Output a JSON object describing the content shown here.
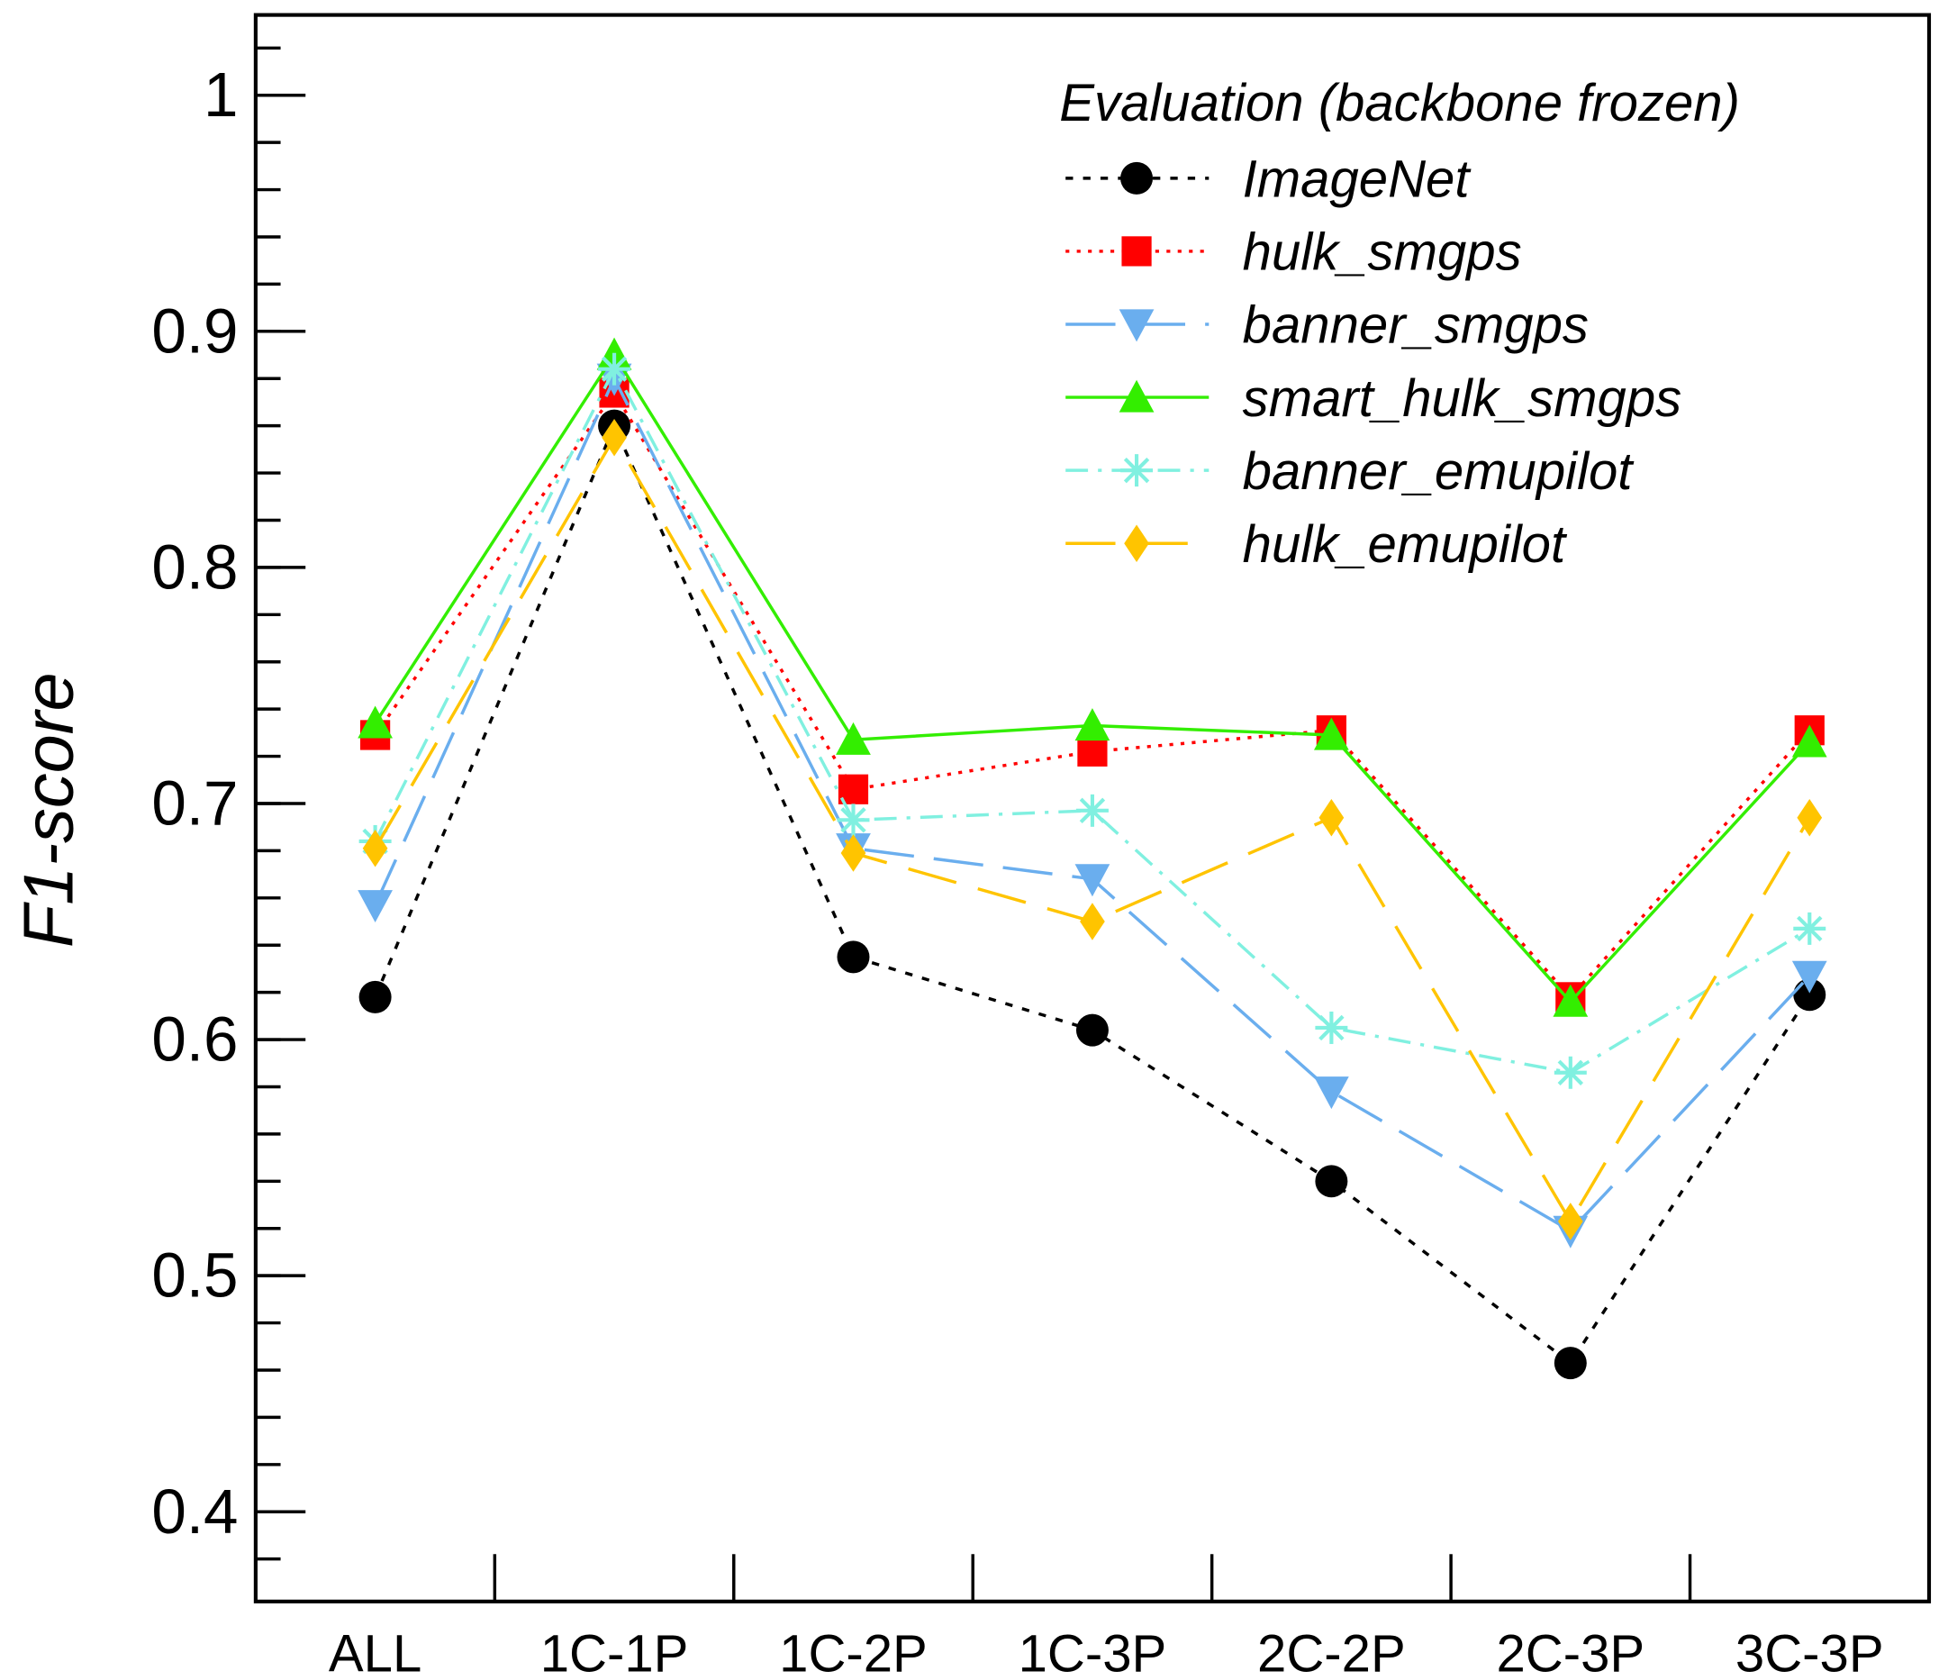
{
  "chart_data": {
    "type": "line",
    "title": "",
    "xlabel": "",
    "ylabel": "F1-score",
    "ylim": [
      0.362,
      1.034
    ],
    "yticks": [
      0.4,
      0.5,
      0.6,
      0.7,
      0.8,
      0.9,
      1.0
    ],
    "ytick_labels": [
      "0.4",
      "0.5",
      "0.6",
      "0.7",
      "0.8",
      "0.9",
      "1"
    ],
    "categories": [
      "ALL",
      "1C-1P",
      "1C-2P",
      "1C-3P",
      "2C-2P",
      "2C-3P",
      "3C-3P"
    ],
    "legend_title": "Evaluation (backbone frozen)",
    "legend_position": "top-right",
    "grid": false,
    "series": [
      {
        "name": "ImageNet",
        "color": "#000000",
        "marker": "circle",
        "dash": "6,8",
        "values": [
          0.618,
          0.86,
          0.635,
          0.604,
          0.54,
          0.463,
          0.619
        ]
      },
      {
        "name": "hulk_smgps",
        "color": "#ff0000",
        "marker": "square",
        "dash": "3,6",
        "values": [
          0.729,
          0.874,
          0.706,
          0.722,
          0.731,
          0.618,
          0.731
        ]
      },
      {
        "name": "banner_smgps",
        "color": "#6aaeee",
        "marker": "triangle-down",
        "dash": "40,16",
        "values": [
          0.657,
          0.88,
          0.681,
          0.668,
          0.578,
          0.519,
          0.627
        ]
      },
      {
        "name": "smart_hulk_smgps",
        "color": "#33ee00",
        "marker": "triangle-up",
        "dash": "",
        "values": [
          0.734,
          0.89,
          0.727,
          0.733,
          0.729,
          0.616,
          0.726
        ]
      },
      {
        "name": "banner_emupilot",
        "color": "#80f0e0",
        "marker": "star",
        "dash": "18,8,3,8",
        "values": [
          0.684,
          0.884,
          0.693,
          0.697,
          0.605,
          0.586,
          0.647
        ]
      },
      {
        "name": "hulk_emupilot",
        "color": "#ffc400",
        "marker": "diamond",
        "dash": "40,18",
        "values": [
          0.681,
          0.855,
          0.679,
          0.65,
          0.694,
          0.523,
          0.694
        ]
      }
    ]
  }
}
